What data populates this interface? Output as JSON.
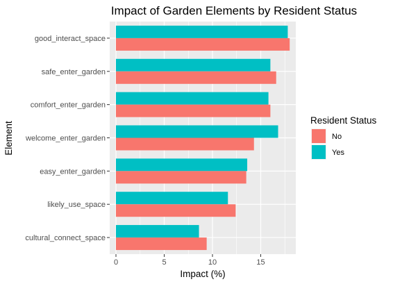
{
  "chart_data": {
    "type": "bar",
    "orientation": "horizontal",
    "title": "Impact of Garden Elements by Resident Status",
    "xlabel": "Impact (%)",
    "ylabel": "Element",
    "xlim": [
      0,
      18.5
    ],
    "xticks": [
      0,
      5,
      10,
      15
    ],
    "categories": [
      "good_interact_space",
      "safe_enter_garden",
      "comfort_enter_garden",
      "welcome_enter_garden",
      "easy_enter_garden",
      "likely_use_space",
      "cultural_connect_space"
    ],
    "series": [
      {
        "name": "Yes",
        "color": "#00BFC4",
        "values": [
          17.8,
          16.0,
          15.8,
          16.8,
          13.6,
          11.6,
          8.6
        ]
      },
      {
        "name": "No",
        "color": "#F8766D",
        "values": [
          18.0,
          16.6,
          16.0,
          14.3,
          13.5,
          12.4,
          9.4
        ]
      }
    ],
    "legend": {
      "title": "Resident Status",
      "position": "right",
      "entries": [
        {
          "label": "No",
          "color": "#F8766D"
        },
        {
          "label": "Yes",
          "color": "#00BFC4"
        }
      ]
    },
    "grid": true,
    "panel_background": "#EBEBEB"
  }
}
